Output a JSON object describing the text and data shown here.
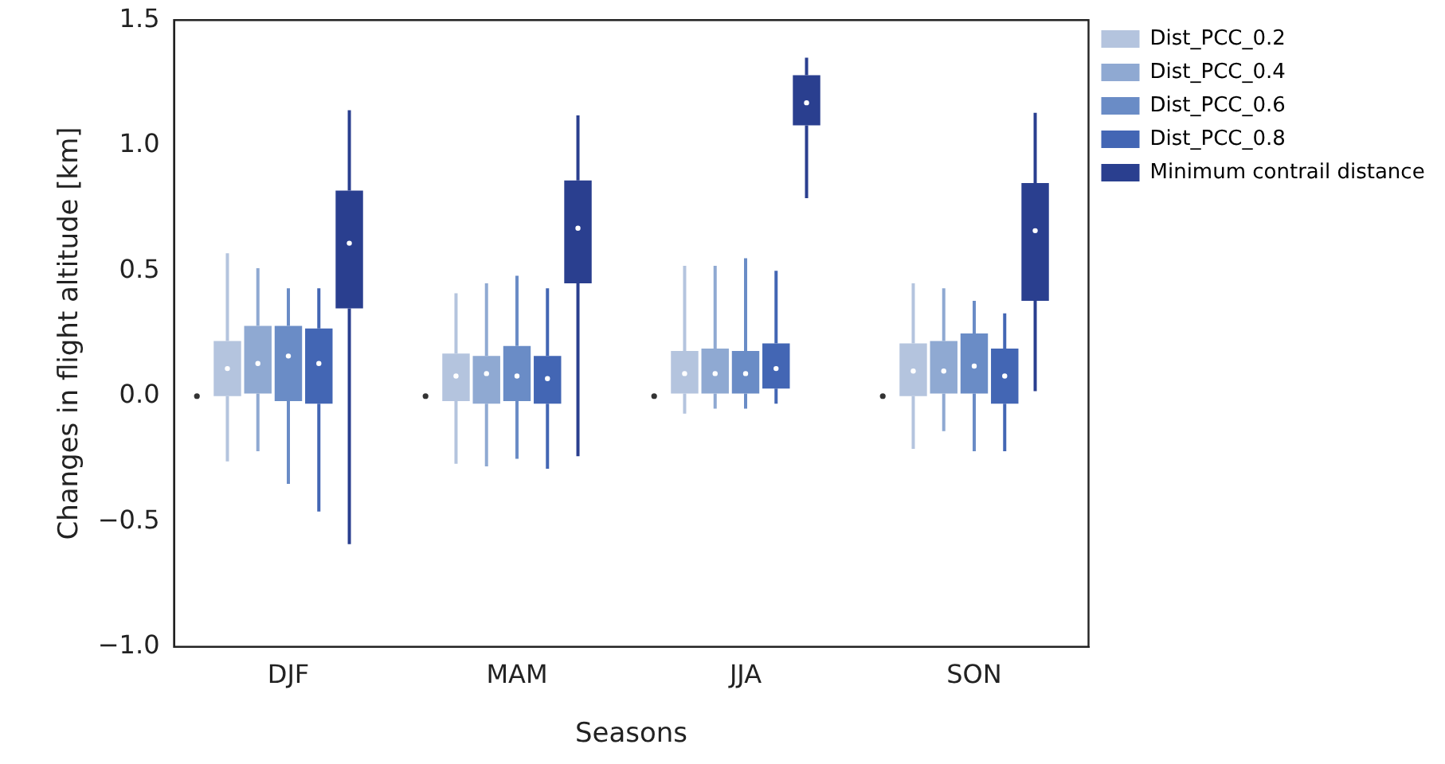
{
  "chart_data": {
    "type": "box",
    "xlabel": "Seasons",
    "ylabel": "Changes in flight altitude [km]",
    "categories": [
      "DJF",
      "MAM",
      "JJA",
      "SON"
    ],
    "ylim": [
      -1.0,
      1.5
    ],
    "yticks": [
      {
        "value": -1.0,
        "label": "−1.0"
      },
      {
        "value": -0.5,
        "label": "−0.5"
      },
      {
        "value": 0.0,
        "label": "0.0"
      },
      {
        "value": 0.5,
        "label": "0.5"
      },
      {
        "value": 1.0,
        "label": "1.0"
      },
      {
        "value": 1.5,
        "label": "1.5"
      }
    ],
    "grid": false,
    "legend": "top right",
    "series": [
      {
        "type": "scatter",
        "color": "#333333",
        "x": [
          "DJF",
          "MAM",
          "JJA",
          "SON"
        ],
        "values": [
          0,
          0,
          0,
          0
        ]
      },
      {
        "name": "Dist_PCC_0.2",
        "color": "#b4c4de",
        "boxes": [
          {
            "low": -0.26,
            "q1": 0.0,
            "median": 0.11,
            "q3": 0.22,
            "high": 0.57
          },
          {
            "low": -0.27,
            "q1": -0.02,
            "median": 0.08,
            "q3": 0.17,
            "high": 0.41
          },
          {
            "low": -0.07,
            "q1": 0.01,
            "median": 0.09,
            "q3": 0.18,
            "high": 0.52
          },
          {
            "low": -0.21,
            "q1": 0.0,
            "median": 0.1,
            "q3": 0.21,
            "high": 0.45
          }
        ]
      },
      {
        "name": "Dist_PCC_0.4",
        "color": "#8fa9d2",
        "boxes": [
          {
            "low": -0.22,
            "q1": 0.01,
            "median": 0.13,
            "q3": 0.28,
            "high": 0.51
          },
          {
            "low": -0.28,
            "q1": -0.03,
            "median": 0.09,
            "q3": 0.16,
            "high": 0.45
          },
          {
            "low": -0.05,
            "q1": 0.01,
            "median": 0.09,
            "q3": 0.19,
            "high": 0.52
          },
          {
            "low": -0.14,
            "q1": 0.01,
            "median": 0.1,
            "q3": 0.22,
            "high": 0.43
          }
        ]
      },
      {
        "name": "Dist_PCC_0.6",
        "color": "#6a8cc6",
        "boxes": [
          {
            "low": -0.35,
            "q1": -0.02,
            "median": 0.16,
            "q3": 0.28,
            "high": 0.43
          },
          {
            "low": -0.25,
            "q1": -0.02,
            "median": 0.08,
            "q3": 0.2,
            "high": 0.48
          },
          {
            "low": -0.05,
            "q1": 0.01,
            "median": 0.09,
            "q3": 0.18,
            "high": 0.55
          },
          {
            "low": -0.22,
            "q1": 0.01,
            "median": 0.12,
            "q3": 0.25,
            "high": 0.38
          }
        ]
      },
      {
        "name": "Dist_PCC_0.8",
        "color": "#4366b4",
        "boxes": [
          {
            "low": -0.46,
            "q1": -0.03,
            "median": 0.13,
            "q3": 0.27,
            "high": 0.43
          },
          {
            "low": -0.29,
            "q1": -0.03,
            "median": 0.07,
            "q3": 0.16,
            "high": 0.43
          },
          {
            "low": -0.03,
            "q1": 0.03,
            "median": 0.11,
            "q3": 0.21,
            "high": 0.5
          },
          {
            "low": -0.22,
            "q1": -0.03,
            "median": 0.08,
            "q3": 0.19,
            "high": 0.33
          }
        ]
      },
      {
        "name": "Minimum contrail distance",
        "color": "#2a3f8f",
        "boxes": [
          {
            "low": -0.59,
            "q1": 0.35,
            "median": 0.61,
            "q3": 0.82,
            "high": 1.14
          },
          {
            "low": -0.24,
            "q1": 0.45,
            "median": 0.67,
            "q3": 0.86,
            "high": 1.12
          },
          {
            "low": 0.79,
            "q1": 1.08,
            "median": 1.17,
            "q3": 1.28,
            "high": 1.35
          },
          {
            "low": 0.02,
            "q1": 0.38,
            "median": 0.66,
            "q3": 0.85,
            "high": 1.13
          }
        ]
      }
    ]
  }
}
